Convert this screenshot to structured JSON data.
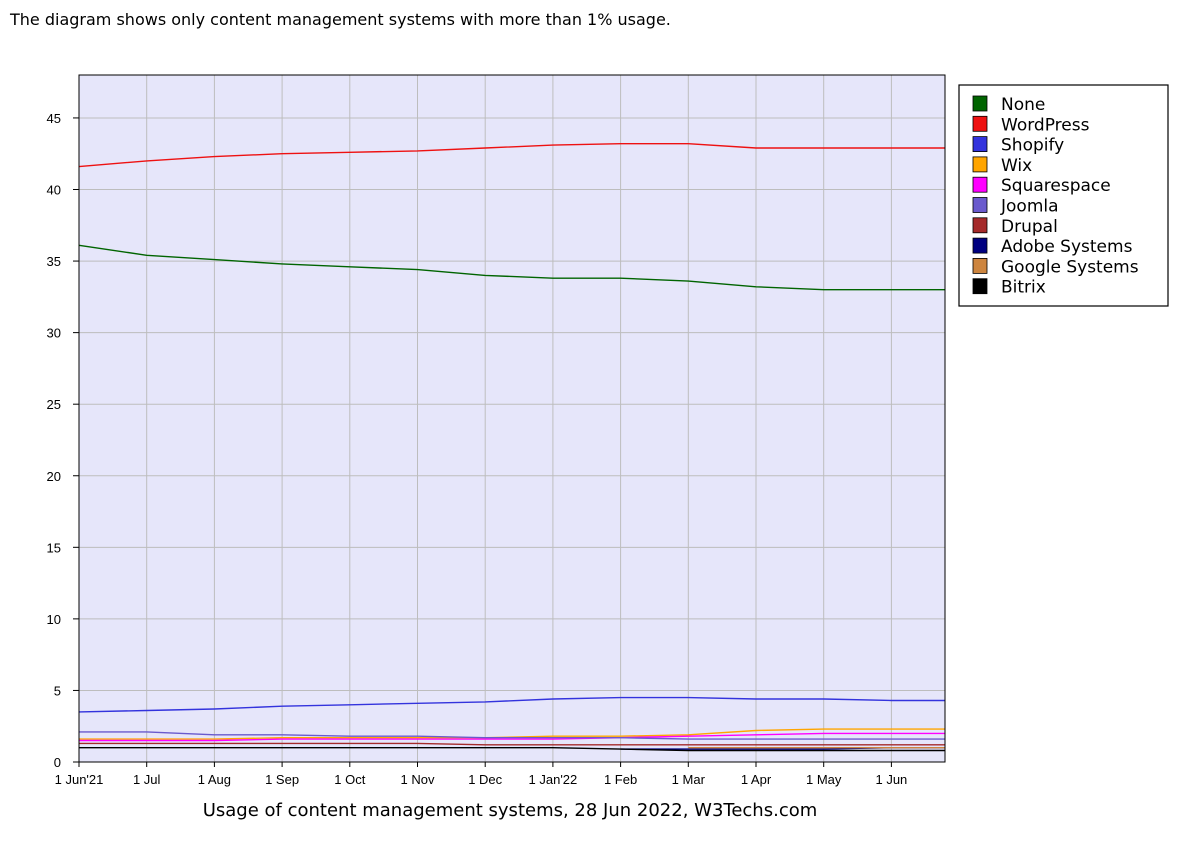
{
  "note": "The diagram shows only content management systems with more than 1% usage.",
  "chart_data": {
    "type": "line",
    "title": "Usage of content management systems, 28 Jun 2022, W3Techs.com",
    "xlabel": "",
    "ylabel": "",
    "ylim": [
      0,
      48
    ],
    "yticks": [
      0,
      5,
      10,
      15,
      20,
      25,
      30,
      35,
      40,
      45
    ],
    "grid": true,
    "legend_position": "right",
    "x": [
      "1 Jun'21",
      "1 Jul",
      "1 Aug",
      "1 Sep",
      "1 Oct",
      "1 Nov",
      "1 Dec",
      "1 Jan'22",
      "1 Feb",
      "1 Mar",
      "1 Apr",
      "1 May",
      "1 Jun",
      "28 Jun"
    ],
    "x_tick_labels": [
      "1 Jun'21",
      "1 Jul",
      "1 Aug",
      "1 Sep",
      "1 Oct",
      "1 Nov",
      "1 Dec",
      "1 Jan'22",
      "1 Feb",
      "1 Mar",
      "1 Apr",
      "1 May",
      "1 Jun"
    ],
    "series": [
      {
        "name": "None",
        "color": "#006400",
        "values": [
          36.1,
          35.4,
          35.1,
          34.8,
          34.6,
          34.4,
          34.0,
          33.8,
          33.8,
          33.6,
          33.2,
          33.0,
          33.0,
          33.0
        ]
      },
      {
        "name": "WordPress",
        "color": "#ee1111",
        "values": [
          41.6,
          42.0,
          42.3,
          42.5,
          42.6,
          42.7,
          42.9,
          43.1,
          43.2,
          43.2,
          42.9,
          42.9,
          42.9,
          42.9
        ]
      },
      {
        "name": "Shopify",
        "color": "#3333dd",
        "values": [
          3.5,
          3.6,
          3.7,
          3.9,
          4.0,
          4.1,
          4.2,
          4.4,
          4.5,
          4.5,
          4.4,
          4.4,
          4.3,
          4.3
        ]
      },
      {
        "name": "Wix",
        "color": "#ffa500",
        "values": [
          1.6,
          1.6,
          1.6,
          1.7,
          1.7,
          1.7,
          1.7,
          1.8,
          1.8,
          1.9,
          2.2,
          2.3,
          2.3,
          2.3
        ]
      },
      {
        "name": "Squarespace",
        "color": "#ff00ff",
        "values": [
          1.5,
          1.5,
          1.5,
          1.6,
          1.6,
          1.6,
          1.6,
          1.6,
          1.7,
          1.8,
          1.9,
          2.0,
          2.0,
          2.0
        ]
      },
      {
        "name": "Joomla",
        "color": "#6a5acd",
        "values": [
          2.1,
          2.1,
          1.9,
          1.9,
          1.8,
          1.8,
          1.7,
          1.7,
          1.7,
          1.6,
          1.6,
          1.6,
          1.6,
          1.6
        ]
      },
      {
        "name": "Drupal",
        "color": "#a52a2a",
        "values": [
          1.3,
          1.3,
          1.3,
          1.3,
          1.3,
          1.3,
          1.2,
          1.2,
          1.2,
          1.2,
          1.2,
          1.2,
          1.2,
          1.2
        ]
      },
      {
        "name": "Adobe Systems",
        "color": "#000080",
        "values": [
          null,
          null,
          null,
          null,
          null,
          null,
          null,
          null,
          0.9,
          0.9,
          0.9,
          0.9,
          1.0,
          1.0
        ]
      },
      {
        "name": "Google Systems",
        "color": "#cd853f",
        "values": [
          null,
          null,
          null,
          null,
          null,
          null,
          null,
          null,
          null,
          1.0,
          1.0,
          1.0,
          1.0,
          1.0
        ]
      },
      {
        "name": "Bitrix",
        "color": "#000000",
        "values": [
          1.0,
          1.0,
          1.0,
          1.0,
          1.0,
          1.0,
          1.0,
          1.0,
          0.9,
          0.8,
          0.8,
          0.8,
          0.8,
          0.8
        ]
      }
    ]
  }
}
